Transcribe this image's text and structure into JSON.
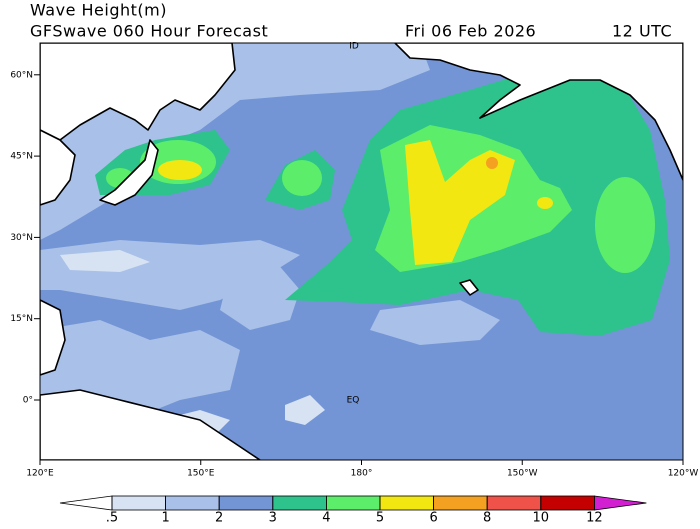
{
  "header": {
    "title": "Wave Height(m)",
    "subtitle": "GFSwave 060 Hour Forecast",
    "date": "Fri 06 Feb 2026",
    "time": "12 UTC"
  },
  "map": {
    "lat_ticks": [
      {
        "value": 60,
        "label": "60°N"
      },
      {
        "value": 45,
        "label": "45°N"
      },
      {
        "value": 30,
        "label": "30°N"
      },
      {
        "value": 15,
        "label": "15°N"
      },
      {
        "value": 0,
        "label": "0°"
      }
    ],
    "lon_ticks": [
      {
        "value": 120,
        "label": "120°E"
      },
      {
        "value": 150,
        "label": "150°E"
      },
      {
        "value": 180,
        "label": "180°"
      },
      {
        "value": 210,
        "label": "150°W"
      },
      {
        "value": 240,
        "label": "120°W"
      }
    ],
    "equator_label": "EQ",
    "dateline_label": "ID"
  },
  "colorbar": {
    "ticks": [
      {
        "value": 0.5,
        "label": ".5"
      },
      1,
      2,
      3,
      4,
      5,
      6,
      8,
      10,
      12
    ],
    "colors": [
      "#ffffff",
      "#d7e3f3",
      "#a9c1e8",
      "#7395d6",
      "#2ec28c",
      "#5ced6b",
      "#f3e712",
      "#f4a020",
      "#ef5249",
      "#c40000",
      "#d21fd2"
    ]
  }
}
